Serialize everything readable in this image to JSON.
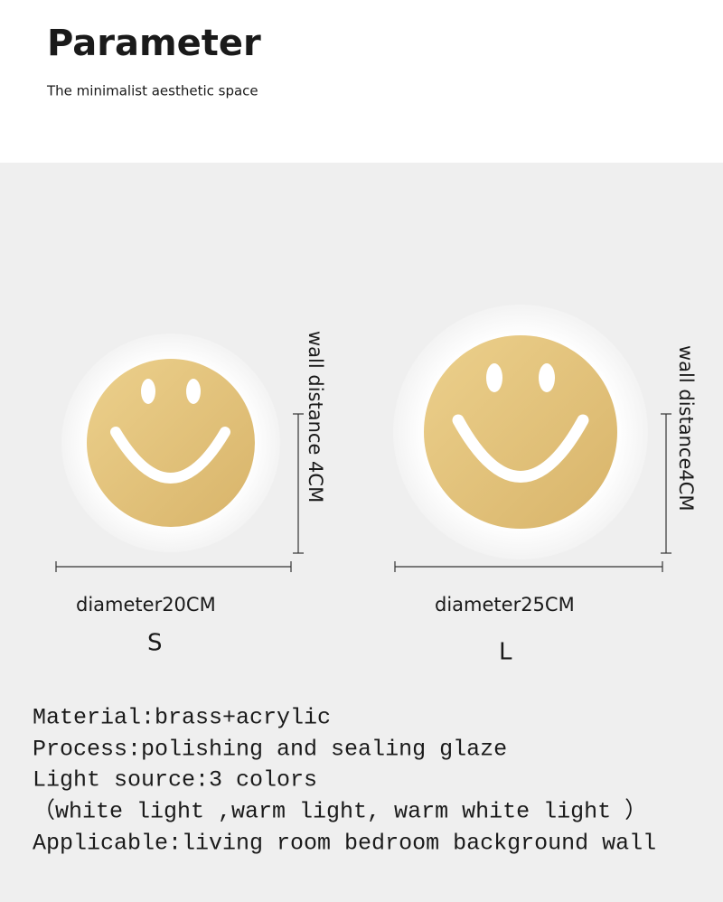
{
  "header": {
    "title": "Parameter",
    "subtitle": "The minimalist aesthetic space"
  },
  "products": [
    {
      "wall_distance": "wall distance 4CM",
      "diameter": "diameter20CM",
      "size": "S"
    },
    {
      "wall_distance": "wall distance4CM",
      "diameter": "diameter25CM",
      "size": "L"
    }
  ],
  "specs": [
    "Material:brass+acrylic",
    "Process:polishing and sealing glaze",
    "Light source:3 colors",
    "（white light ,warm light, warm white light ）",
    "Applicable:living room bedroom background wall"
  ]
}
